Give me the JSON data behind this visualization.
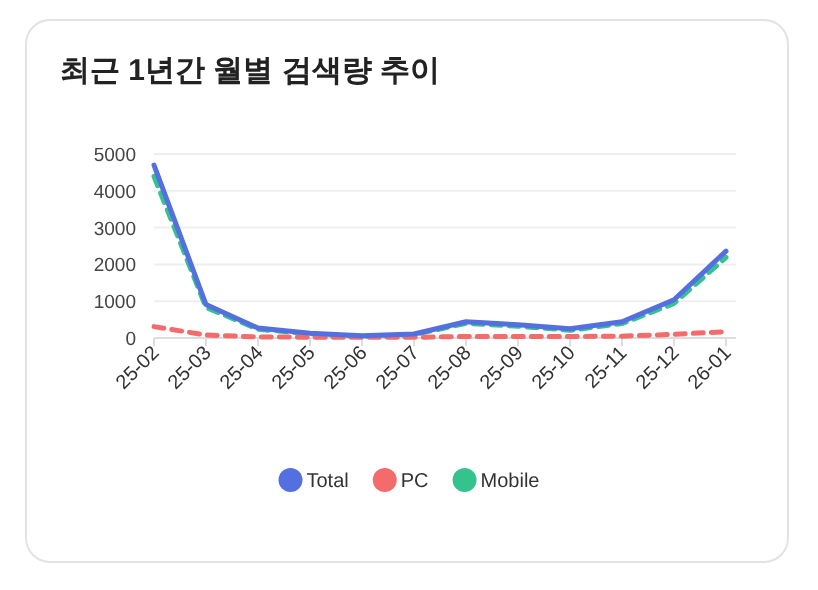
{
  "chart_data": {
    "type": "line",
    "title": "최근 1년간 월별 검색량 추이",
    "categories": [
      "25-02",
      "25-03",
      "25-04",
      "25-05",
      "25-06",
      "25-07",
      "25-08",
      "25-09",
      "25-10",
      "25-11",
      "25-12",
      "26-01"
    ],
    "series": [
      {
        "name": "Total",
        "color": "#5470e0",
        "line_style": "solid",
        "values": [
          4700,
          910,
          270,
          130,
          60,
          110,
          440,
          360,
          250,
          440,
          1040,
          2360
        ]
      },
      {
        "name": "PC",
        "color": "#f36b6b",
        "line_style": "dashed",
        "values": [
          310,
          80,
          30,
          20,
          20,
          20,
          40,
          40,
          40,
          50,
          100,
          170
        ]
      },
      {
        "name": "Mobile",
        "color": "#34c38f",
        "line_style": "dashed",
        "values": [
          4390,
          830,
          240,
          110,
          40,
          90,
          400,
          320,
          210,
          390,
          940,
          2190
        ]
      }
    ],
    "ylim": [
      0,
      5000
    ],
    "yticks": [
      0,
      1000,
      2000,
      3000,
      4000,
      5000
    ],
    "grid": "y",
    "legend": "bottom",
    "marker": "none"
  }
}
